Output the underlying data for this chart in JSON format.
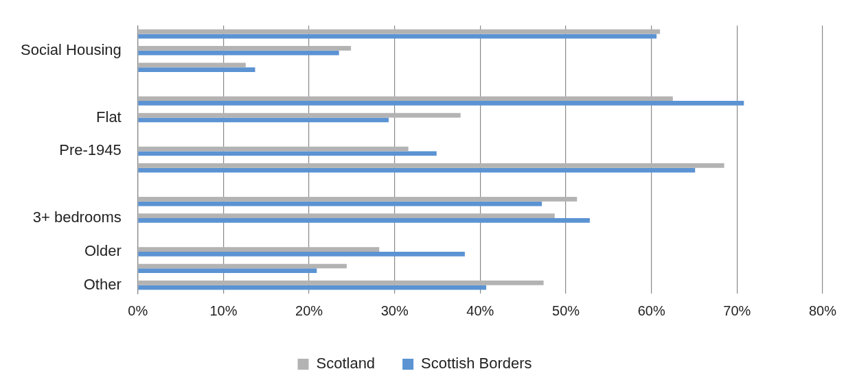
{
  "chart_data": {
    "type": "bar",
    "orientation": "horizontal",
    "categories": [
      null,
      "Social Housing",
      null,
      null,
      null,
      "Flat",
      null,
      "Pre-1945",
      null,
      null,
      null,
      "3+ bedrooms",
      null,
      "Older",
      null,
      "Other"
    ],
    "series": [
      {
        "name": "Scotland",
        "color": "#b3b3b3",
        "values": [
          61.0,
          24.9,
          12.6,
          null,
          62.5,
          37.7,
          null,
          31.6,
          68.5,
          null,
          51.3,
          48.7,
          null,
          28.2,
          24.4,
          47.4
        ]
      },
      {
        "name": "Scottish Borders",
        "color": "#5b93d3",
        "values": [
          60.6,
          23.5,
          13.7,
          null,
          70.8,
          29.3,
          null,
          34.9,
          65.1,
          null,
          47.2,
          52.8,
          null,
          38.2,
          20.9,
          40.7
        ]
      }
    ],
    "xlim": [
      0,
      80
    ],
    "xticks": [
      {
        "value": 0,
        "label": "0%"
      },
      {
        "value": 10,
        "label": "10%"
      },
      {
        "value": 20,
        "label": "20%"
      },
      {
        "value": 30,
        "label": "30%"
      },
      {
        "value": 40,
        "label": "40%"
      },
      {
        "value": 50,
        "label": "50%"
      },
      {
        "value": 60,
        "label": "60%"
      },
      {
        "value": 70,
        "label": "70%"
      },
      {
        "value": 80,
        "label": "80%"
      }
    ],
    "grid": "x",
    "legend": "bottom"
  }
}
